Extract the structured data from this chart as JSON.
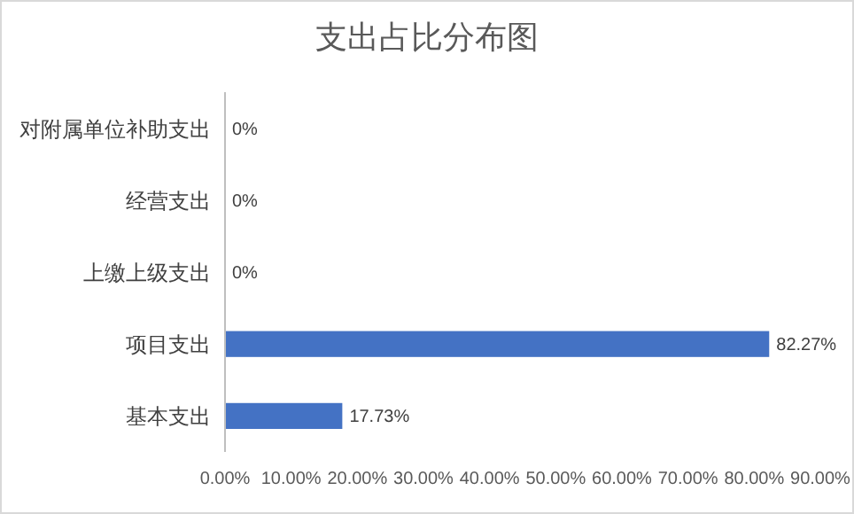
{
  "chart_data": {
    "type": "bar",
    "orientation": "horizontal",
    "title": "支出占比分布图",
    "categories": [
      "对附属单位补助支出",
      "经营支出",
      "上缴上级支出",
      "项目支出",
      "基本支出"
    ],
    "values": [
      0,
      0,
      0,
      82.27,
      17.73
    ],
    "value_labels": [
      "0%",
      "0%",
      "0%",
      "82.27%",
      "17.73%"
    ],
    "color": "#4472c4",
    "xlim": [
      0,
      90
    ],
    "xticks": [
      {
        "value": 0,
        "label": "0.00%"
      },
      {
        "value": 10,
        "label": "10.00%"
      },
      {
        "value": 20,
        "label": "20.00%"
      },
      {
        "value": 30,
        "label": "30.00%"
      },
      {
        "value": 40,
        "label": "40.00%"
      },
      {
        "value": 50,
        "label": "50.00%"
      },
      {
        "value": 60,
        "label": "60.00%"
      },
      {
        "value": 70,
        "label": "70.00%"
      },
      {
        "value": 80,
        "label": "80.00%"
      },
      {
        "value": 90,
        "label": "90.00%"
      }
    ],
    "grid": false
  }
}
